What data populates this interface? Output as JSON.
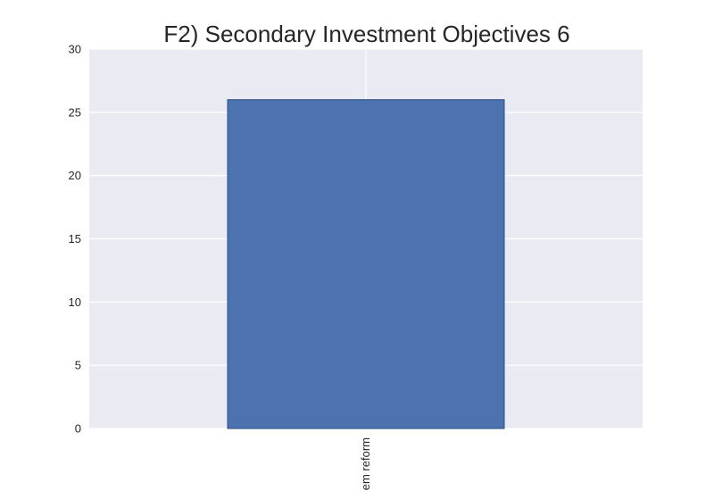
{
  "chart_data": {
    "type": "bar",
    "title": "F2) Secondary Investment Objectives 6",
    "xlabel": "",
    "ylabel": "",
    "categories": [
      "em reform"
    ],
    "values": [
      26
    ],
    "ylim": [
      0,
      30
    ],
    "yticks": [
      "0",
      "5",
      "10",
      "15",
      "20",
      "25",
      "30"
    ],
    "grid": true,
    "legend": "none"
  },
  "colors": {
    "plot_background": "#eaeaf2",
    "gridline": "#ffffff",
    "bar_fill": "#4c72b0",
    "bar_edge": "#2f4f80",
    "text": "#262626"
  }
}
